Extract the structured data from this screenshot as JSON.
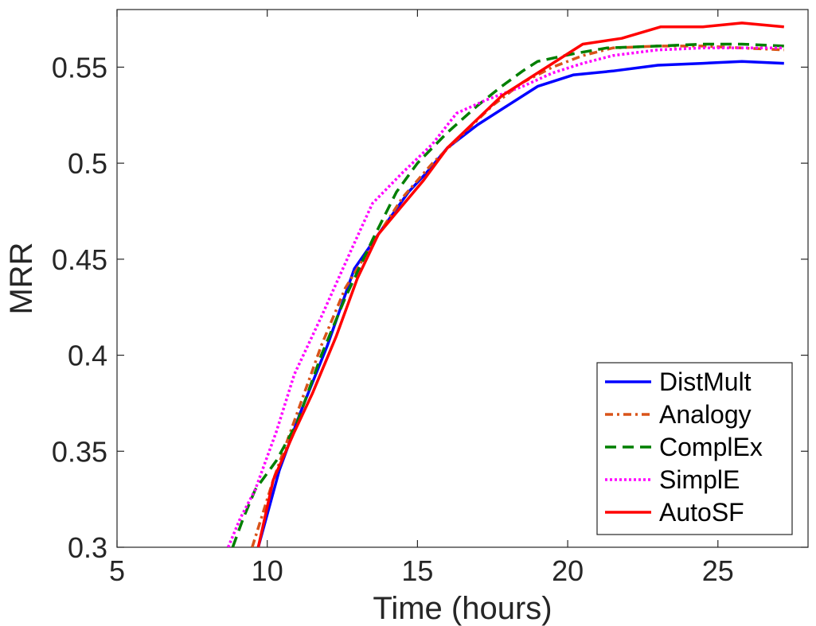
{
  "chart_data": {
    "type": "line",
    "title": "",
    "xlabel": "Time (hours)",
    "ylabel": "MRR",
    "xlim": [
      5,
      28
    ],
    "ylim": [
      0.3,
      0.58
    ],
    "xticks": [
      5,
      10,
      15,
      20,
      25
    ],
    "xtick_labels": [
      "5",
      "10",
      "15",
      "20",
      "25"
    ],
    "yticks": [
      0.3,
      0.35,
      0.4,
      0.45,
      0.5,
      0.55
    ],
    "ytick_labels": [
      "0.3",
      "0.35",
      "0.4",
      "0.45",
      "0.5",
      "0.55"
    ],
    "grid": false,
    "legend_position": "bottom-right",
    "series": [
      {
        "name": "DistMult",
        "color": "#0000ff",
        "dash": "solid",
        "points": [
          [
            9.7,
            0.3
          ],
          [
            10.4,
            0.34
          ],
          [
            11.1,
            0.37
          ],
          [
            12.0,
            0.405
          ],
          [
            12.9,
            0.445
          ],
          [
            13.7,
            0.463
          ],
          [
            14.7,
            0.485
          ],
          [
            15.3,
            0.495
          ],
          [
            16.0,
            0.508
          ],
          [
            17.0,
            0.52
          ],
          [
            18.0,
            0.53
          ],
          [
            19.0,
            0.54
          ],
          [
            20.2,
            0.546
          ],
          [
            21.5,
            0.548
          ],
          [
            23.0,
            0.551
          ],
          [
            24.5,
            0.552
          ],
          [
            25.8,
            0.553
          ],
          [
            27.2,
            0.552
          ]
        ]
      },
      {
        "name": "Analogy",
        "color": "#d95319",
        "dash": "dashdot",
        "points": [
          [
            9.5,
            0.3
          ],
          [
            10.2,
            0.335
          ],
          [
            11.0,
            0.37
          ],
          [
            11.8,
            0.405
          ],
          [
            12.6,
            0.435
          ],
          [
            13.5,
            0.458
          ],
          [
            14.5,
            0.482
          ],
          [
            15.5,
            0.5
          ],
          [
            16.5,
            0.515
          ],
          [
            17.5,
            0.53
          ],
          [
            18.5,
            0.542
          ],
          [
            19.5,
            0.55
          ],
          [
            20.5,
            0.556
          ],
          [
            21.5,
            0.56
          ],
          [
            23.0,
            0.561
          ],
          [
            24.5,
            0.561
          ],
          [
            25.8,
            0.56
          ],
          [
            27.2,
            0.559
          ]
        ]
      },
      {
        "name": "ComplEx",
        "color": "#007f00",
        "dash": "dashed",
        "points": [
          [
            8.85,
            0.3
          ],
          [
            9.2,
            0.315
          ],
          [
            9.6,
            0.33
          ],
          [
            10.3,
            0.345
          ],
          [
            11.0,
            0.365
          ],
          [
            11.8,
            0.4
          ],
          [
            12.6,
            0.43
          ],
          [
            13.5,
            0.46
          ],
          [
            14.3,
            0.485
          ],
          [
            15.0,
            0.5
          ],
          [
            16.0,
            0.516
          ],
          [
            17.0,
            0.53
          ],
          [
            17.8,
            0.54
          ],
          [
            18.5,
            0.548
          ],
          [
            19.0,
            0.553
          ],
          [
            20.2,
            0.557
          ],
          [
            21.3,
            0.56
          ],
          [
            23.0,
            0.561
          ],
          [
            24.5,
            0.562
          ],
          [
            25.8,
            0.562
          ],
          [
            27.2,
            0.561
          ]
        ]
      },
      {
        "name": "SimplE",
        "color": "#ff00ff",
        "dash": "dotted",
        "points": [
          [
            8.7,
            0.3
          ],
          [
            9.1,
            0.315
          ],
          [
            9.6,
            0.33
          ],
          [
            10.3,
            0.36
          ],
          [
            10.9,
            0.39
          ],
          [
            11.8,
            0.42
          ],
          [
            12.8,
            0.455
          ],
          [
            13.5,
            0.479
          ],
          [
            14.5,
            0.495
          ],
          [
            15.5,
            0.51
          ],
          [
            16.3,
            0.526
          ],
          [
            17.3,
            0.533
          ],
          [
            18.5,
            0.54
          ],
          [
            19.5,
            0.547
          ],
          [
            20.5,
            0.552
          ],
          [
            21.5,
            0.556
          ],
          [
            23.0,
            0.559
          ],
          [
            24.5,
            0.56
          ],
          [
            25.8,
            0.56
          ],
          [
            27.2,
            0.56
          ]
        ]
      },
      {
        "name": "AutoSF",
        "color": "#ff0000",
        "dash": "solid",
        "points": [
          [
            9.7,
            0.3
          ],
          [
            10.2,
            0.335
          ],
          [
            10.9,
            0.36
          ],
          [
            11.5,
            0.38
          ],
          [
            12.3,
            0.41
          ],
          [
            13.0,
            0.44
          ],
          [
            13.7,
            0.463
          ],
          [
            14.5,
            0.478
          ],
          [
            15.2,
            0.491
          ],
          [
            16.0,
            0.508
          ],
          [
            16.8,
            0.52
          ],
          [
            17.8,
            0.535
          ],
          [
            18.8,
            0.545
          ],
          [
            19.5,
            0.552
          ],
          [
            20.5,
            0.562
          ],
          [
            21.8,
            0.565
          ],
          [
            23.1,
            0.571
          ],
          [
            24.5,
            0.571
          ],
          [
            25.8,
            0.573
          ],
          [
            27.2,
            0.571
          ]
        ]
      }
    ]
  }
}
